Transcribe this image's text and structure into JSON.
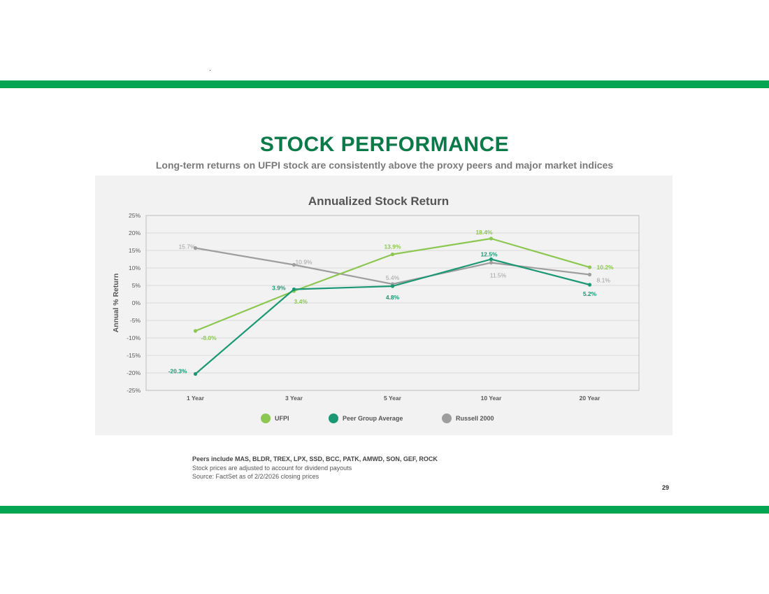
{
  "page": {
    "title": "STOCK PERFORMANCE",
    "subtitle": "Long-term returns on UFPI stock are consistently above the proxy peers and major market indices",
    "notes": [
      "Peers include MAS, BLDR, TREX, LPX, SSD, BCC, PATK, AMWD, SON, GEF, ROCK",
      "Stock prices are adjusted to account for dividend payouts",
      "Source: FactSet as of 2/2/2026 closing prices"
    ],
    "page_number": "29",
    "colors": {
      "brand_green": "#00a651",
      "title_green": "#0a7a48"
    }
  },
  "chart_data": {
    "type": "line",
    "title": "Annualized Stock Return",
    "xlabel": "",
    "ylabel": "Annual % Return",
    "categories": [
      "1 Year",
      "3 Year",
      "5 Year",
      "10 Year",
      "20 Year"
    ],
    "ylim": [
      -25,
      25
    ],
    "yticks": [
      25,
      20,
      15,
      10,
      5,
      0,
      -5,
      -10,
      -15,
      -20,
      -25
    ],
    "ytick_labels": [
      "25%",
      "20%",
      "15%",
      "10%",
      "5%",
      "0%",
      "-5%",
      "-10%",
      "-15%",
      "-20%",
      "-25%"
    ],
    "grid": true,
    "legend_position": "bottom",
    "series": [
      {
        "name": "UFPI",
        "color": "#8cc751",
        "values": [
          -8.0,
          3.4,
          13.9,
          18.4,
          10.2
        ],
        "labels": [
          "-8.0%",
          "3.4%",
          "13.9%",
          "18.4%",
          "10.2%"
        ]
      },
      {
        "name": "Peer Group Average",
        "color": "#1a9874",
        "values": [
          -20.3,
          3.9,
          4.8,
          12.5,
          5.2
        ],
        "labels": [
          "-20.3%",
          "3.9%",
          "4.8%",
          "12.5%",
          "5.2%"
        ]
      },
      {
        "name": "Russell 2000",
        "color": "#9e9e9e",
        "values": [
          15.7,
          10.9,
          5.4,
          11.5,
          8.1
        ],
        "labels": [
          "15.7%",
          "10.9%",
          "5.4%",
          "11.5%",
          "8.1%"
        ]
      }
    ]
  }
}
